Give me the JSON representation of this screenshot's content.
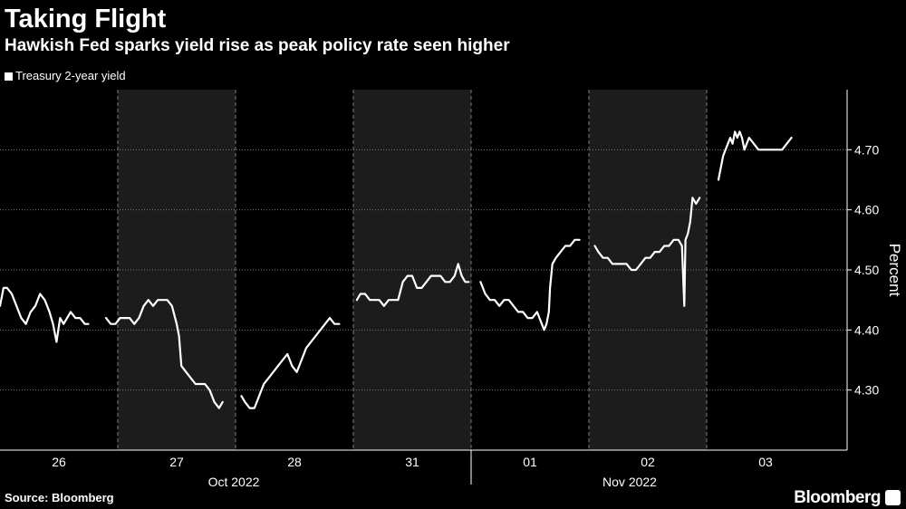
{
  "chart_data": {
    "type": "line",
    "title": "Taking Flight",
    "subtitle": "Hawkish Fed sparks yield rise as peak policy rate seen higher",
    "legend": "Treasury 2-year yield",
    "ylabel": "Percent",
    "xlabel": "",
    "ylim": [
      4.2,
      4.8
    ],
    "yticks": [
      "4.30",
      "4.40",
      "4.50",
      "4.60",
      "4.70"
    ],
    "day_labels": [
      "26",
      "27",
      "28",
      "31",
      "01",
      "02",
      "03"
    ],
    "month_labels": [
      "Oct 2022",
      "Nov 2022"
    ],
    "source": "Source: Bloomberg",
    "brand": "Bloomberg",
    "colors": {
      "background": "#000000",
      "shade": "#1c1c1c",
      "line": "#ffffff",
      "grid": "#7a7a7a"
    },
    "series": [
      {
        "name": "Treasury 2-year yield",
        "segments": [
          [
            [
              0.0,
              4.44
            ],
            [
              0.03,
              4.47
            ],
            [
              0.06,
              4.47
            ],
            [
              0.1,
              4.46
            ],
            [
              0.14,
              4.44
            ],
            [
              0.18,
              4.42
            ],
            [
              0.22,
              4.41
            ],
            [
              0.26,
              4.43
            ],
            [
              0.3,
              4.44
            ],
            [
              0.34,
              4.46
            ],
            [
              0.38,
              4.45
            ],
            [
              0.42,
              4.43
            ],
            [
              0.45,
              4.41
            ],
            [
              0.48,
              4.38
            ],
            [
              0.51,
              4.42
            ],
            [
              0.54,
              4.41
            ],
            [
              0.57,
              4.42
            ],
            [
              0.6,
              4.43
            ],
            [
              0.64,
              4.42
            ],
            [
              0.68,
              4.42
            ],
            [
              0.72,
              4.41
            ],
            [
              0.75,
              4.41
            ]
          ],
          [
            [
              0.9,
              4.42
            ],
            [
              0.94,
              4.41
            ],
            [
              0.98,
              4.41
            ],
            [
              1.02,
              4.42
            ],
            [
              1.06,
              4.42
            ],
            [
              1.1,
              4.42
            ],
            [
              1.14,
              4.41
            ],
            [
              1.18,
              4.42
            ],
            [
              1.22,
              4.44
            ],
            [
              1.26,
              4.45
            ],
            [
              1.3,
              4.44
            ],
            [
              1.34,
              4.45
            ],
            [
              1.38,
              4.45
            ],
            [
              1.42,
              4.45
            ],
            [
              1.46,
              4.44
            ],
            [
              1.5,
              4.41
            ],
            [
              1.52,
              4.39
            ],
            [
              1.54,
              4.34
            ],
            [
              1.58,
              4.33
            ],
            [
              1.62,
              4.32
            ],
            [
              1.66,
              4.31
            ],
            [
              1.7,
              4.31
            ],
            [
              1.74,
              4.31
            ],
            [
              1.78,
              4.3
            ],
            [
              1.82,
              4.28
            ],
            [
              1.86,
              4.27
            ],
            [
              1.89,
              4.28
            ]
          ],
          [
            [
              2.05,
              4.29
            ],
            [
              2.08,
              4.28
            ],
            [
              2.12,
              4.27
            ],
            [
              2.16,
              4.27
            ],
            [
              2.2,
              4.29
            ],
            [
              2.24,
              4.31
            ],
            [
              2.28,
              4.32
            ],
            [
              2.32,
              4.33
            ],
            [
              2.36,
              4.34
            ],
            [
              2.4,
              4.35
            ],
            [
              2.44,
              4.36
            ],
            [
              2.48,
              4.34
            ],
            [
              2.52,
              4.33
            ],
            [
              2.56,
              4.35
            ],
            [
              2.6,
              4.37
            ],
            [
              2.64,
              4.38
            ],
            [
              2.68,
              4.39
            ],
            [
              2.72,
              4.4
            ],
            [
              2.76,
              4.41
            ],
            [
              2.8,
              4.42
            ],
            [
              2.84,
              4.41
            ],
            [
              2.88,
              4.41
            ]
          ],
          [
            [
              3.03,
              4.45
            ],
            [
              3.06,
              4.46
            ],
            [
              3.1,
              4.46
            ],
            [
              3.14,
              4.45
            ],
            [
              3.18,
              4.45
            ],
            [
              3.22,
              4.45
            ],
            [
              3.26,
              4.44
            ],
            [
              3.3,
              4.45
            ],
            [
              3.34,
              4.45
            ],
            [
              3.38,
              4.45
            ],
            [
              3.42,
              4.48
            ],
            [
              3.46,
              4.49
            ],
            [
              3.5,
              4.49
            ],
            [
              3.54,
              4.47
            ],
            [
              3.58,
              4.47
            ],
            [
              3.62,
              4.48
            ],
            [
              3.66,
              4.49
            ],
            [
              3.7,
              4.49
            ],
            [
              3.74,
              4.49
            ],
            [
              3.78,
              4.48
            ],
            [
              3.82,
              4.48
            ],
            [
              3.86,
              4.49
            ],
            [
              3.89,
              4.51
            ],
            [
              3.92,
              4.49
            ],
            [
              3.95,
              4.48
            ],
            [
              3.98,
              4.48
            ]
          ],
          [
            [
              4.08,
              4.48
            ],
            [
              4.12,
              4.46
            ],
            [
              4.16,
              4.45
            ],
            [
              4.2,
              4.45
            ],
            [
              4.24,
              4.44
            ],
            [
              4.28,
              4.45
            ],
            [
              4.32,
              4.45
            ],
            [
              4.36,
              4.44
            ],
            [
              4.4,
              4.43
            ],
            [
              4.44,
              4.43
            ],
            [
              4.48,
              4.42
            ],
            [
              4.52,
              4.42
            ],
            [
              4.56,
              4.43
            ],
            [
              4.6,
              4.41
            ],
            [
              4.62,
              4.4
            ],
            [
              4.64,
              4.41
            ],
            [
              4.66,
              4.43
            ],
            [
              4.67,
              4.47
            ],
            [
              4.69,
              4.51
            ],
            [
              4.72,
              4.52
            ],
            [
              4.76,
              4.53
            ],
            [
              4.8,
              4.54
            ],
            [
              4.84,
              4.54
            ],
            [
              4.88,
              4.55
            ],
            [
              4.92,
              4.55
            ]
          ],
          [
            [
              5.05,
              4.54
            ],
            [
              5.08,
              4.53
            ],
            [
              5.12,
              4.52
            ],
            [
              5.16,
              4.52
            ],
            [
              5.2,
              4.51
            ],
            [
              5.24,
              4.51
            ],
            [
              5.28,
              4.51
            ],
            [
              5.32,
              4.51
            ],
            [
              5.36,
              4.5
            ],
            [
              5.4,
              4.5
            ],
            [
              5.44,
              4.51
            ],
            [
              5.48,
              4.52
            ],
            [
              5.52,
              4.52
            ],
            [
              5.56,
              4.53
            ],
            [
              5.6,
              4.53
            ],
            [
              5.64,
              4.54
            ],
            [
              5.68,
              4.54
            ],
            [
              5.72,
              4.55
            ],
            [
              5.76,
              4.55
            ],
            [
              5.79,
              4.54
            ],
            [
              5.81,
              4.44
            ],
            [
              5.82,
              4.55
            ],
            [
              5.84,
              4.56
            ],
            [
              5.86,
              4.58
            ],
            [
              5.88,
              4.62
            ],
            [
              5.91,
              4.61
            ],
            [
              5.94,
              4.62
            ]
          ],
          [
            [
              6.1,
              4.65
            ],
            [
              6.12,
              4.67
            ],
            [
              6.14,
              4.69
            ],
            [
              6.16,
              4.7
            ],
            [
              6.18,
              4.71
            ],
            [
              6.2,
              4.72
            ],
            [
              6.22,
              4.71
            ],
            [
              6.24,
              4.73
            ],
            [
              6.26,
              4.72
            ],
            [
              6.28,
              4.73
            ],
            [
              6.3,
              4.72
            ],
            [
              6.32,
              4.7
            ],
            [
              6.34,
              4.71
            ],
            [
              6.36,
              4.72
            ],
            [
              6.4,
              4.71
            ],
            [
              6.44,
              4.7
            ],
            [
              6.48,
              4.7
            ],
            [
              6.52,
              4.7
            ],
            [
              6.56,
              4.7
            ],
            [
              6.6,
              4.7
            ],
            [
              6.64,
              4.7
            ],
            [
              6.68,
              4.71
            ],
            [
              6.72,
              4.72
            ]
          ]
        ]
      }
    ]
  }
}
